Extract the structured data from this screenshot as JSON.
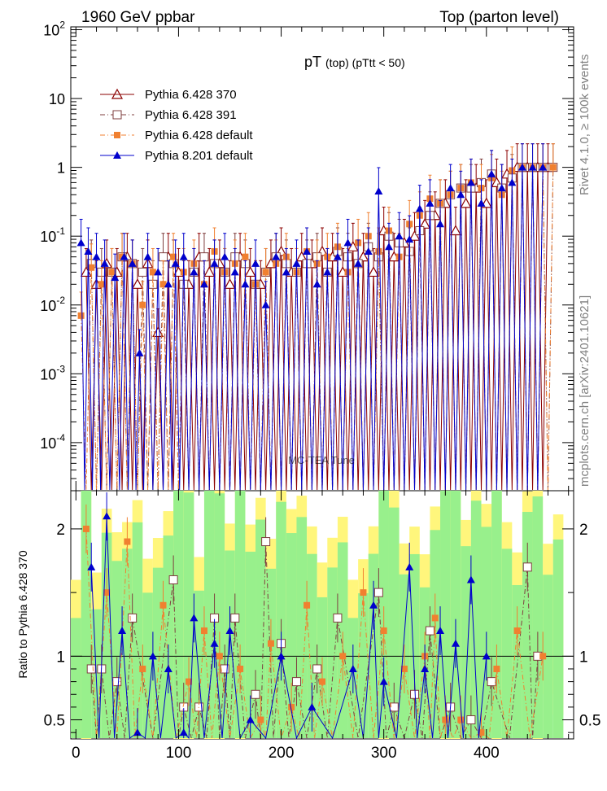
{
  "header": {
    "left": "1960 GeV ppbar",
    "right": "Top (parton level)"
  },
  "side_labels": {
    "rivet": "Rivet 4.1.0, ≥ 100k events",
    "mcplots": "mcplots.cern.ch [arXiv:2401.10621]"
  },
  "watermark": "MC-TEA Tune",
  "chart_data": [
    {
      "type": "line",
      "panel": "main",
      "title_main": "pT",
      "title_sub": "(top) (pTtt < 50)",
      "yscale": "log",
      "xlim": [
        -5,
        485
      ],
      "ylim": [
        2e-05,
        110
      ],
      "x_ticks": [
        0,
        100,
        200,
        300,
        400
      ],
      "y_tick_labels": [
        "10^2",
        "10",
        "1",
        "10^-1",
        "10^-2",
        "10^-3",
        "10^-4"
      ],
      "legend": [
        {
          "name": "Pythia 6.428 370",
          "color": "#8b0000",
          "marker": "open-triangle",
          "dash": "solid"
        },
        {
          "name": "Pythia 6.428 391",
          "color": "#7f3f3f",
          "marker": "open-square",
          "dash": "dashdot"
        },
        {
          "name": "Pythia 6.428 default",
          "color": "#f08030",
          "marker": "filled-square",
          "dash": "dashdot"
        },
        {
          "name": "Pythia 8.201 default",
          "color": "#0000cc",
          "marker": "filled-triangle",
          "dash": "solid"
        }
      ],
      "series": [
        {
          "name": "Pythia 6.428 370",
          "x": [
            10,
            20,
            30,
            40,
            50,
            60,
            70,
            80,
            90,
            100,
            110,
            120,
            130,
            140,
            150,
            160,
            170,
            180,
            190,
            200,
            210,
            220,
            230,
            240,
            250,
            260,
            270,
            280,
            290,
            300,
            310,
            320,
            330,
            340,
            350,
            360,
            370,
            380,
            390,
            400,
            410,
            420,
            430,
            440,
            450,
            460
          ],
          "y": [
            0.03,
            0.02,
            0.04,
            0.03,
            0.05,
            0.02,
            0.04,
            0.004,
            0.05,
            0.03,
            0.02,
            0.05,
            0.03,
            0.04,
            0.02,
            0.05,
            0.03,
            0.02,
            0.04,
            0.06,
            0.03,
            0.05,
            0.04,
            0.06,
            0.05,
            0.03,
            0.07,
            0.05,
            0.03,
            0.12,
            0.05,
            0.08,
            0.1,
            0.15,
            0.2,
            0.3,
            0.12,
            0.3,
            0.5,
            0.3,
            0.6,
            0.8,
            1.0,
            1.0,
            1.0,
            1.0
          ]
        },
        {
          "name": "Pythia 6.428 391",
          "x": [
            15,
            25,
            35,
            45,
            55,
            65,
            75,
            85,
            95,
            105,
            115,
            125,
            135,
            145,
            155,
            165,
            175,
            185,
            195,
            205,
            215,
            225,
            235,
            245,
            255,
            265,
            275,
            285,
            295,
            305,
            315,
            325,
            335,
            345,
            355,
            365,
            375,
            385,
            395,
            405,
            415,
            425,
            435,
            445,
            455,
            465
          ],
          "y": [
            0.04,
            0.03,
            0.03,
            0.05,
            0.04,
            0.03,
            0.02,
            0.05,
            0.04,
            0.02,
            0.03,
            0.05,
            0.04,
            0.03,
            0.05,
            0.04,
            0.02,
            0.03,
            0.05,
            0.04,
            0.03,
            0.04,
            0.05,
            0.03,
            0.06,
            0.05,
            0.04,
            0.07,
            0.05,
            0.1,
            0.08,
            0.06,
            0.12,
            0.2,
            0.3,
            0.4,
            0.5,
            0.5,
            0.6,
            0.8,
            0.5,
            0.7,
            1.0,
            1.0,
            1.0,
            1.0
          ]
        },
        {
          "name": "Pythia 6.428 default",
          "x": [
            5,
            15,
            25,
            35,
            45,
            55,
            65,
            75,
            85,
            95,
            105,
            115,
            125,
            135,
            145,
            155,
            165,
            175,
            185,
            195,
            205,
            215,
            225,
            235,
            245,
            255,
            265,
            275,
            285,
            295,
            305,
            315,
            325,
            335,
            345,
            355,
            365,
            375,
            385,
            395,
            405,
            415,
            425,
            435,
            445,
            455,
            465
          ],
          "y": [
            0.007,
            0.035,
            0.02,
            0.03,
            0.05,
            0.04,
            0.01,
            0.03,
            0.02,
            0.05,
            0.03,
            0.04,
            0.02,
            0.06,
            0.03,
            0.04,
            0.05,
            0.02,
            0.03,
            0.04,
            0.05,
            0.03,
            0.06,
            0.04,
            0.05,
            0.07,
            0.03,
            0.08,
            0.1,
            0.06,
            0.12,
            0.05,
            0.15,
            0.2,
            0.35,
            0.3,
            0.4,
            0.5,
            0.6,
            0.5,
            0.7,
            0.4,
            0.9,
            1.0,
            1.0,
            1.0,
            1.0
          ]
        },
        {
          "name": "Pythia 8.201 default",
          "x": [
            5,
            12,
            20,
            28,
            38,
            47,
            55,
            62,
            70,
            80,
            90,
            97,
            105,
            115,
            125,
            135,
            145,
            155,
            165,
            175,
            185,
            195,
            205,
            215,
            225,
            235,
            245,
            255,
            265,
            275,
            285,
            295,
            305,
            315,
            325,
            335,
            345,
            355,
            365,
            375,
            385,
            395,
            405,
            415,
            425,
            435,
            445,
            455
          ],
          "y": [
            0.08,
            0.06,
            0.05,
            0.04,
            0.025,
            0.05,
            0.04,
            0.002,
            0.05,
            0.03,
            0.02,
            0.04,
            0.05,
            0.03,
            0.02,
            0.04,
            0.05,
            0.03,
            0.02,
            0.04,
            0.01,
            0.05,
            0.03,
            0.04,
            0.06,
            0.02,
            0.03,
            0.05,
            0.08,
            0.04,
            0.06,
            0.45,
            0.07,
            0.1,
            0.09,
            0.25,
            0.3,
            0.15,
            0.5,
            0.4,
            0.6,
            0.3,
            0.8,
            0.5,
            0.6,
            1.0,
            1.0,
            1.0
          ]
        }
      ]
    },
    {
      "type": "line",
      "panel": "ratio",
      "ylabel": "Ratio to Pythia 6.428 370",
      "xlim": [
        -5,
        485
      ],
      "ylim": [
        0.35,
        2.3
      ],
      "x_ticks": [
        0,
        100,
        200,
        300,
        400
      ],
      "y_ticks": [
        0.5,
        1,
        2
      ],
      "series": [
        {
          "name": "Pythia 6.428 391",
          "x": [
            15,
            25,
            40,
            55,
            95,
            105,
            120,
            135,
            145,
            155,
            175,
            185,
            200,
            215,
            235,
            255,
            295,
            310,
            330,
            345,
            365,
            385,
            405,
            440,
            450
          ],
          "y": [
            0.9,
            0.9,
            0.8,
            1.3,
            1.6,
            0.6,
            0.6,
            1.3,
            0.9,
            1.3,
            0.7,
            1.9,
            1.1,
            0.8,
            0.9,
            1.3,
            1.5,
            0.6,
            0.7,
            1.2,
            0.6,
            0.5,
            0.8,
            1.7,
            1.0
          ]
        },
        {
          "name": "Pythia 6.428 default",
          "x": [
            10,
            30,
            50,
            65,
            85,
            110,
            125,
            140,
            160,
            180,
            190,
            210,
            225,
            240,
            260,
            280,
            300,
            320,
            340,
            350,
            360,
            375,
            395,
            410,
            430,
            455
          ],
          "y": [
            2.0,
            1.5,
            1.9,
            0.9,
            1.4,
            0.8,
            1.2,
            1.0,
            0.9,
            0.5,
            1.1,
            0.6,
            1.4,
            0.8,
            1.0,
            1.5,
            1.2,
            0.9,
            1.0,
            1.3,
            0.5,
            0.5,
            0.4,
            0.9,
            1.2,
            1.0
          ]
        },
        {
          "name": "Pythia 8.201 default",
          "x": [
            15,
            30,
            45,
            60,
            75,
            90,
            105,
            115,
            135,
            150,
            170,
            200,
            230,
            270,
            290,
            300,
            325,
            340,
            355,
            370,
            385,
            400
          ],
          "y": [
            1.7,
            2.1,
            1.2,
            0.4,
            1.0,
            0.9,
            0.4,
            1.3,
            1.1,
            1.2,
            0.5,
            1.0,
            0.6,
            0.9,
            1.4,
            0.8,
            1.7,
            0.9,
            1.2,
            1.1,
            1.6,
            1.0
          ]
        }
      ]
    }
  ]
}
